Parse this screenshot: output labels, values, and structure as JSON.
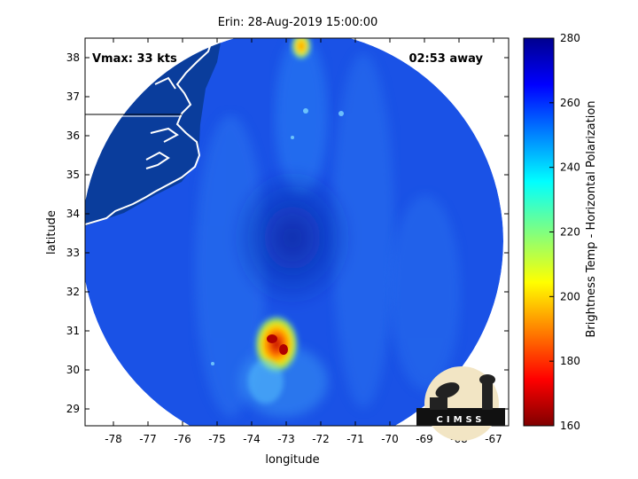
{
  "title": "Erin: 28-Aug-2019 15:00:00",
  "vmax_label": "Vmax: 33 kts",
  "time_away_label": "02:53 away",
  "xlabel": "longitude",
  "ylabel": "latitude",
  "x_ticks": [
    "-78",
    "-77",
    "-76",
    "-75",
    "-74",
    "-73",
    "-72",
    "-71",
    "-70",
    "-69",
    "-68",
    "-67"
  ],
  "y_ticks": [
    "38",
    "37",
    "36",
    "35",
    "34",
    "33",
    "32",
    "31",
    "30",
    "29"
  ],
  "colorbar": {
    "label": "Brightness Temp - Horizontal Polarization",
    "ticks": [
      "280",
      "260",
      "240",
      "220",
      "200",
      "180",
      "160"
    ],
    "range": [
      160,
      280
    ],
    "colormap": "jet"
  },
  "logo_text": "CIMSS",
  "colors": {
    "swath_base": "#1a52e6",
    "land": "#0a3d9c",
    "background": "#ffffff"
  }
}
